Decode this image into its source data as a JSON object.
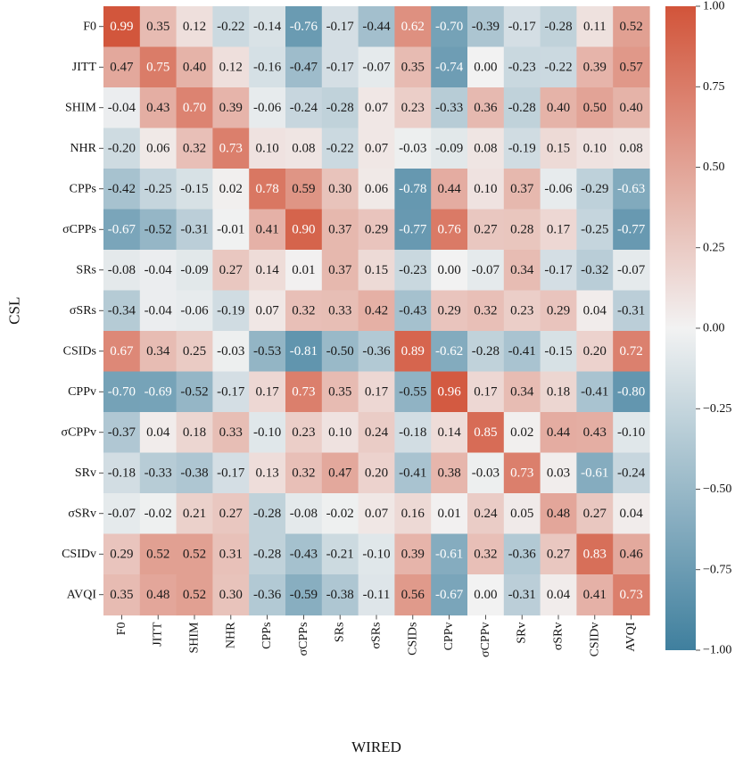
{
  "chart_data": {
    "type": "heatmap",
    "xlabel": "WIRED",
    "ylabel": "CSL",
    "x_categories": [
      "F0",
      "JITT",
      "SHIM",
      "NHR",
      "CPPs",
      "σCPPs",
      "SRs",
      "σSRs",
      "CSIDs",
      "CPPv",
      "σCPPv",
      "SRv",
      "σSRv",
      "CSIDv",
      "AVQI"
    ],
    "y_categories": [
      "F0",
      "JITT",
      "SHIM",
      "NHR",
      "CPPs",
      "σCPPs",
      "SRs",
      "σSRs",
      "CSIDs",
      "CPPv",
      "σCPPv",
      "SRv",
      "σSRv",
      "CSIDv",
      "AVQI"
    ],
    "values": [
      [
        0.99,
        0.35,
        0.12,
        -0.22,
        -0.14,
        -0.76,
        -0.17,
        -0.44,
        0.62,
        -0.7,
        -0.39,
        -0.17,
        -0.28,
        0.11,
        0.52
      ],
      [
        0.47,
        0.75,
        0.4,
        0.12,
        -0.16,
        -0.47,
        -0.17,
        -0.07,
        0.35,
        -0.74,
        -0.0,
        -0.23,
        -0.22,
        0.39,
        0.57
      ],
      [
        -0.04,
        0.43,
        0.7,
        0.39,
        -0.06,
        -0.24,
        -0.28,
        0.07,
        0.23,
        -0.33,
        0.36,
        -0.28,
        0.4,
        0.5,
        0.4
      ],
      [
        -0.2,
        0.06,
        0.32,
        0.73,
        0.1,
        0.08,
        -0.22,
        0.07,
        -0.03,
        -0.09,
        0.08,
        -0.19,
        0.15,
        0.1,
        0.08
      ],
      [
        -0.42,
        -0.25,
        -0.15,
        0.02,
        0.78,
        0.59,
        0.3,
        0.06,
        -0.78,
        0.44,
        0.1,
        0.37,
        -0.06,
        -0.29,
        -0.63
      ],
      [
        -0.67,
        -0.52,
        -0.31,
        -0.01,
        0.41,
        0.9,
        0.37,
        0.29,
        -0.77,
        0.76,
        0.27,
        0.28,
        0.17,
        -0.25,
        -0.77
      ],
      [
        -0.08,
        -0.04,
        -0.09,
        0.27,
        0.14,
        0.01,
        0.37,
        0.15,
        -0.23,
        -0.0,
        -0.07,
        0.34,
        -0.17,
        -0.32,
        -0.07
      ],
      [
        -0.34,
        -0.04,
        -0.06,
        -0.19,
        0.07,
        0.32,
        0.33,
        0.42,
        -0.43,
        0.29,
        0.32,
        0.23,
        0.29,
        0.04,
        -0.31
      ],
      [
        0.67,
        0.34,
        0.25,
        -0.03,
        -0.53,
        -0.81,
        -0.5,
        -0.36,
        0.89,
        -0.62,
        -0.28,
        -0.41,
        -0.15,
        0.2,
        0.72
      ],
      [
        -0.7,
        -0.69,
        -0.52,
        -0.17,
        0.17,
        0.73,
        0.35,
        0.17,
        -0.55,
        0.96,
        0.17,
        0.34,
        0.18,
        -0.41,
        -0.8
      ],
      [
        -0.37,
        0.04,
        0.18,
        0.33,
        -0.1,
        0.23,
        0.1,
        0.24,
        -0.18,
        0.14,
        0.85,
        0.02,
        0.44,
        0.43,
        -0.1
      ],
      [
        -0.18,
        -0.33,
        -0.38,
        -0.17,
        0.13,
        0.32,
        0.47,
        0.2,
        -0.41,
        0.38,
        -0.03,
        0.73,
        0.03,
        -0.61,
        -0.24
      ],
      [
        -0.07,
        -0.02,
        0.21,
        0.27,
        -0.28,
        -0.08,
        -0.02,
        0.07,
        0.16,
        0.01,
        0.24,
        0.05,
        0.48,
        0.27,
        0.04
      ],
      [
        0.29,
        0.52,
        0.52,
        0.31,
        -0.28,
        -0.43,
        -0.21,
        -0.1,
        0.39,
        -0.61,
        0.32,
        -0.36,
        0.27,
        0.83,
        0.46
      ],
      [
        0.35,
        0.48,
        0.52,
        0.3,
        -0.36,
        -0.59,
        -0.38,
        -0.11,
        0.56,
        -0.67,
        0.0,
        -0.31,
        0.04,
        0.41,
        0.73
      ]
    ],
    "value_range": [
      -1.0,
      1.0
    ],
    "colorbar": {
      "ticks": [
        1.0,
        0.75,
        0.5,
        0.25,
        0.0,
        -0.25,
        -0.5,
        -0.75,
        -1.0
      ],
      "tick_labels": [
        "1.00",
        "0.75",
        "0.50",
        "0.25",
        "0.00",
        "−0.25",
        "−0.50",
        "−0.75",
        "−1.00"
      ],
      "low_color": "#3f7f9e",
      "mid_color": "#f2f2f2",
      "high_color": "#d2543a"
    },
    "annotations": true,
    "grid": false
  }
}
